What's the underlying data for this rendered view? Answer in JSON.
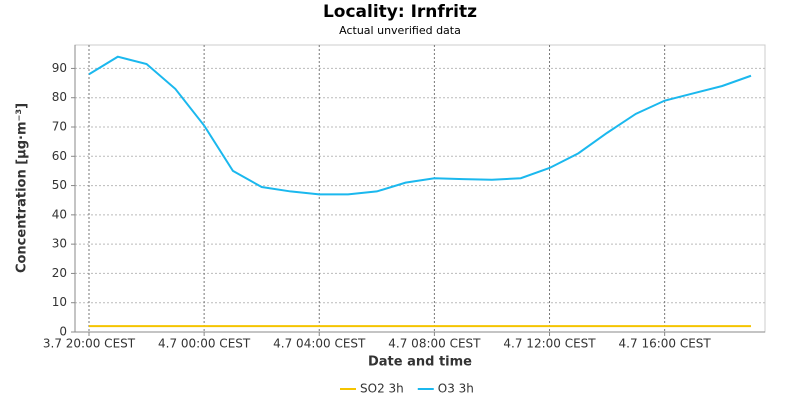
{
  "chart_data": {
    "type": "line",
    "title": "Locality: Irnfritz",
    "subtitle": "Actual unverified data",
    "x_label": "Date and time",
    "y_label": "Concentration [µg·m⁻³]",
    "categories": [
      "3.7 20:00",
      "3.7 21:00",
      "3.7 22:00",
      "3.7 23:00",
      "4.7 00:00",
      "4.7 01:00",
      "4.7 02:00",
      "4.7 03:00",
      "4.7 04:00",
      "4.7 05:00",
      "4.7 06:00",
      "4.7 07:00",
      "4.7 08:00",
      "4.7 09:00",
      "4.7 10:00",
      "4.7 11:00",
      "4.7 12:00",
      "4.7 13:00",
      "4.7 14:00",
      "4.7 15:00",
      "4.7 16:00",
      "4.7 17:00",
      "4.7 18:00",
      "4.7 19:00"
    ],
    "series": [
      {
        "name": "SO2 3h",
        "color": "#f5c400",
        "values": [
          2,
          2,
          2,
          2,
          2,
          2,
          2,
          2,
          2,
          2,
          2,
          2,
          2,
          2,
          2,
          2,
          2,
          2,
          2,
          2,
          2,
          2,
          2,
          2
        ]
      },
      {
        "name": "O3 3h",
        "color": "#1bb8ee",
        "values": [
          88,
          94,
          91.5,
          83,
          70.5,
          55,
          49.5,
          48,
          47,
          47,
          48,
          51,
          52.5,
          52.2,
          52,
          52.5,
          56,
          61,
          68,
          74.5,
          79,
          81.5,
          84,
          87.5
        ]
      }
    ],
    "xticks": [
      {
        "value": "3.7 20:00",
        "label": "3.7 20:00 CEST"
      },
      {
        "value": "4.7 00:00",
        "label": "4.7 00:00 CEST"
      },
      {
        "value": "4.7 04:00",
        "label": "4.7 04:00 CEST"
      },
      {
        "value": "4.7 08:00",
        "label": "4.7 08:00 CEST"
      },
      {
        "value": "4.7 12:00",
        "label": "4.7 12:00 CEST"
      },
      {
        "value": "4.7 16:00",
        "label": "4.7 16:00 CEST"
      }
    ],
    "ylim": [
      0,
      98
    ],
    "yticks": [
      0,
      10,
      20,
      30,
      40,
      50,
      60,
      70,
      80,
      90
    ],
    "grid": true,
    "legend": "bottom"
  }
}
